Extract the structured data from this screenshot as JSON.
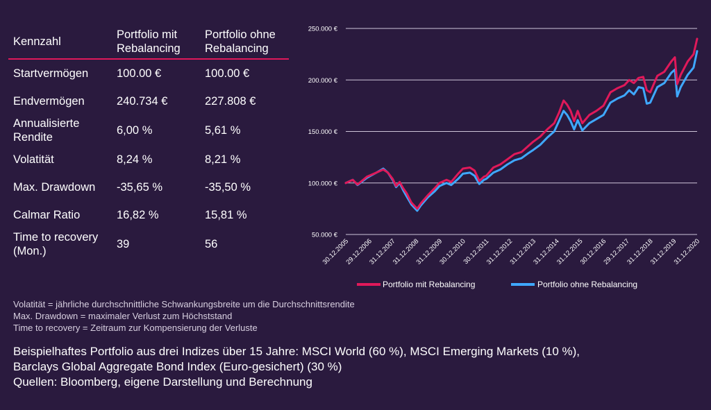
{
  "table": {
    "headers": [
      "Kennzahl",
      "Portfolio mit\nRebalancing",
      "Portfolio ohne\nRebalancing"
    ],
    "rows": [
      [
        "Startvermögen",
        "100.00 €",
        "100.00 €"
      ],
      [
        "Endvermögen",
        "240.734 €",
        "227.808 €"
      ],
      [
        "Annualisierte\nRendite",
        "6,00 %",
        "5,61 %"
      ],
      [
        "Volatität",
        "8,24 %",
        "8,21 %"
      ],
      [
        "Max. Drawdown",
        "-35,65 %",
        "-35,50 %"
      ],
      [
        "Calmar Ratio",
        "16,82 %",
        "15,81 %"
      ],
      [
        "Time to recovery\n(Mon.)",
        "39",
        "56"
      ]
    ]
  },
  "notes": [
    "Volatität = jährliche durchschnittliche Schwankungsbreite um die Durchschnittsrendite",
    "Max. Drawdown = maximaler Verlust zum Höchststand",
    "Time to recovery = Zeitraum zur Kompensierung der Verluste"
  ],
  "footer": [
    "Beispielhaftes Portfolio aus drei Indizes über 15 Jahre: MSCI World (60 %), MSCI Emerging Markets (10 %),",
    "Barclays Global Aggregate Bond Index (Euro-gesichert) (30 %)",
    "Quellen: Bloomberg, eigene Darstellung und Berechnung"
  ],
  "chart_data": {
    "type": "line",
    "title": "",
    "xlabel": "",
    "ylabel": "",
    "ylim": [
      50000,
      250000
    ],
    "yticks": [
      50000,
      100000,
      150000,
      200000,
      250000
    ],
    "ytick_labels": [
      "50.000 €",
      "100.000 €",
      "150.000 €",
      "200.000 €",
      "250.000 €"
    ],
    "xticks": [
      2006.0,
      2007.0,
      2008.0,
      2009.0,
      2010.0,
      2011.0,
      2012.0,
      2013.0,
      2014.0,
      2015.0,
      2016.0,
      2017.0,
      2018.0,
      2019.0,
      2020.0,
      2021.0
    ],
    "xtick_labels": [
      "30.12.2005",
      "29.12.2006",
      "31.12.2007",
      "31.12.2008",
      "31.12.2009",
      "30.12.2010",
      "30.12.2011",
      "31.12.2012",
      "31.12.2013",
      "31.12.2014",
      "31.12.2015",
      "30.12.2016",
      "29.12.2017",
      "31.12.2018",
      "31.12.2019",
      "31.12.2020"
    ],
    "grid": true,
    "legend": "bottom",
    "series": [
      {
        "name": "Portfolio mit Rebalancing",
        "color": "#e0195a",
        "points": [
          [
            2006.0,
            100000
          ],
          [
            2006.3,
            103000
          ],
          [
            2006.5,
            98500
          ],
          [
            2006.9,
            106000
          ],
          [
            2007.3,
            110000
          ],
          [
            2007.6,
            113000
          ],
          [
            2007.8,
            110000
          ],
          [
            2008.0,
            104000
          ],
          [
            2008.15,
            97000
          ],
          [
            2008.3,
            101000
          ],
          [
            2008.45,
            95000
          ],
          [
            2008.6,
            90000
          ],
          [
            2008.8,
            81000
          ],
          [
            2009.05,
            75000
          ],
          [
            2009.2,
            80000
          ],
          [
            2009.5,
            88000
          ],
          [
            2009.8,
            95000
          ],
          [
            2010.0,
            100000
          ],
          [
            2010.3,
            103000
          ],
          [
            2010.5,
            101000
          ],
          [
            2010.8,
            109000
          ],
          [
            2011.0,
            114000
          ],
          [
            2011.3,
            115000
          ],
          [
            2011.5,
            112000
          ],
          [
            2011.7,
            102000
          ],
          [
            2011.9,
            106000
          ],
          [
            2012.0,
            107000
          ],
          [
            2012.3,
            115000
          ],
          [
            2012.6,
            118000
          ],
          [
            2012.9,
            123000
          ],
          [
            2013.2,
            128000
          ],
          [
            2013.5,
            130000
          ],
          [
            2013.8,
            136000
          ],
          [
            2014.0,
            140000
          ],
          [
            2014.3,
            145000
          ],
          [
            2014.6,
            152000
          ],
          [
            2014.9,
            158000
          ],
          [
            2015.1,
            168000
          ],
          [
            2015.3,
            180000
          ],
          [
            2015.45,
            176000
          ],
          [
            2015.6,
            170000
          ],
          [
            2015.75,
            160000
          ],
          [
            2015.9,
            170000
          ],
          [
            2016.1,
            158000
          ],
          [
            2016.4,
            166000
          ],
          [
            2016.7,
            170000
          ],
          [
            2017.0,
            175000
          ],
          [
            2017.3,
            188000
          ],
          [
            2017.6,
            192000
          ],
          [
            2017.9,
            195000
          ],
          [
            2018.1,
            200000
          ],
          [
            2018.3,
            197000
          ],
          [
            2018.5,
            202000
          ],
          [
            2018.7,
            203000
          ],
          [
            2018.85,
            190000
          ],
          [
            2019.0,
            188000
          ],
          [
            2019.3,
            204000
          ],
          [
            2019.6,
            208000
          ],
          [
            2019.9,
            218000
          ],
          [
            2020.05,
            222000
          ],
          [
            2020.15,
            196000
          ],
          [
            2020.3,
            205000
          ],
          [
            2020.6,
            218000
          ],
          [
            2020.85,
            225000
          ],
          [
            2021.0,
            240000
          ]
        ]
      },
      {
        "name": "Portfolio ohne Rebalancing",
        "color": "#3fa8ff",
        "points": [
          [
            2006.0,
            100000
          ],
          [
            2006.3,
            103000
          ],
          [
            2006.5,
            98000
          ],
          [
            2006.9,
            105000
          ],
          [
            2007.3,
            110000
          ],
          [
            2007.6,
            114000
          ],
          [
            2007.8,
            110000
          ],
          [
            2008.0,
            103000
          ],
          [
            2008.15,
            96000
          ],
          [
            2008.3,
            100000
          ],
          [
            2008.45,
            93000
          ],
          [
            2008.6,
            87000
          ],
          [
            2008.8,
            79000
          ],
          [
            2009.05,
            73000
          ],
          [
            2009.2,
            78000
          ],
          [
            2009.5,
            86000
          ],
          [
            2009.8,
            92000
          ],
          [
            2010.0,
            97000
          ],
          [
            2010.3,
            100000
          ],
          [
            2010.5,
            98000
          ],
          [
            2010.8,
            104000
          ],
          [
            2011.0,
            109000
          ],
          [
            2011.3,
            110000
          ],
          [
            2011.5,
            107000
          ],
          [
            2011.7,
            99000
          ],
          [
            2011.9,
            103000
          ],
          [
            2012.0,
            104000
          ],
          [
            2012.3,
            110000
          ],
          [
            2012.6,
            113000
          ],
          [
            2012.9,
            118000
          ],
          [
            2013.2,
            122000
          ],
          [
            2013.5,
            124000
          ],
          [
            2013.8,
            129000
          ],
          [
            2014.0,
            132000
          ],
          [
            2014.3,
            137000
          ],
          [
            2014.6,
            144000
          ],
          [
            2014.9,
            150000
          ],
          [
            2015.1,
            160000
          ],
          [
            2015.3,
            170000
          ],
          [
            2015.45,
            166000
          ],
          [
            2015.6,
            160000
          ],
          [
            2015.75,
            152000
          ],
          [
            2015.9,
            161000
          ],
          [
            2016.1,
            151000
          ],
          [
            2016.4,
            158000
          ],
          [
            2016.7,
            162000
          ],
          [
            2017.0,
            166000
          ],
          [
            2017.3,
            178000
          ],
          [
            2017.6,
            182000
          ],
          [
            2017.9,
            185000
          ],
          [
            2018.1,
            190000
          ],
          [
            2018.3,
            186000
          ],
          [
            2018.5,
            193000
          ],
          [
            2018.7,
            192000
          ],
          [
            2018.85,
            177000
          ],
          [
            2019.0,
            178000
          ],
          [
            2019.3,
            193000
          ],
          [
            2019.6,
            197000
          ],
          [
            2019.9,
            207000
          ],
          [
            2020.05,
            210000
          ],
          [
            2020.15,
            184000
          ],
          [
            2020.3,
            193000
          ],
          [
            2020.6,
            205000
          ],
          [
            2020.85,
            212000
          ],
          [
            2021.0,
            228000
          ]
        ]
      }
    ]
  }
}
